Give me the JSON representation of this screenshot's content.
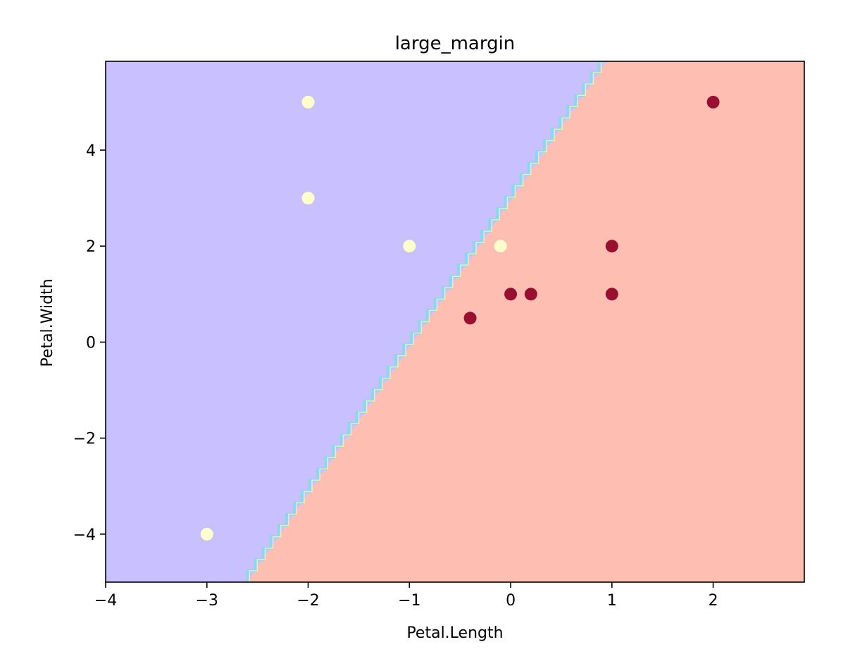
{
  "chart_data": {
    "type": "scatter",
    "title": "large_margin",
    "xlabel": "Petal.Length",
    "ylabel": "Petal.Width",
    "xlim": [
      -4,
      2.9
    ],
    "ylim": [
      -5,
      5.85
    ],
    "x_ticks": [
      -4,
      -3,
      -2,
      -1,
      0,
      1,
      2
    ],
    "x_tick_labels": [
      "−4",
      "−3",
      "−2",
      "−1",
      "0",
      "1",
      "2"
    ],
    "y_ticks": [
      -4,
      -2,
      0,
      2,
      4
    ],
    "y_tick_labels": [
      "−4",
      "−2",
      "0",
      "2",
      "4"
    ],
    "grid": false,
    "decision_boundary": {
      "points": [
        [
          -2.6,
          -5
        ],
        [
          0.95,
          5.85
        ]
      ],
      "left_region_color": "#c8c0ff",
      "right_region_color": "#ffbeb2",
      "boundary_color": "#7fdcf0"
    },
    "series": [
      {
        "color": "#ffffcc",
        "points": [
          [
            -2,
            5
          ],
          [
            -2,
            3
          ],
          [
            -1,
            2
          ],
          [
            -0.1,
            2
          ],
          [
            -3,
            -4
          ]
        ]
      },
      {
        "color": "#990f30",
        "points": [
          [
            2,
            5
          ],
          [
            1,
            2
          ],
          [
            1,
            1
          ],
          [
            0,
            1
          ],
          [
            0.2,
            1
          ],
          [
            -0.4,
            0.5
          ]
        ]
      }
    ]
  }
}
